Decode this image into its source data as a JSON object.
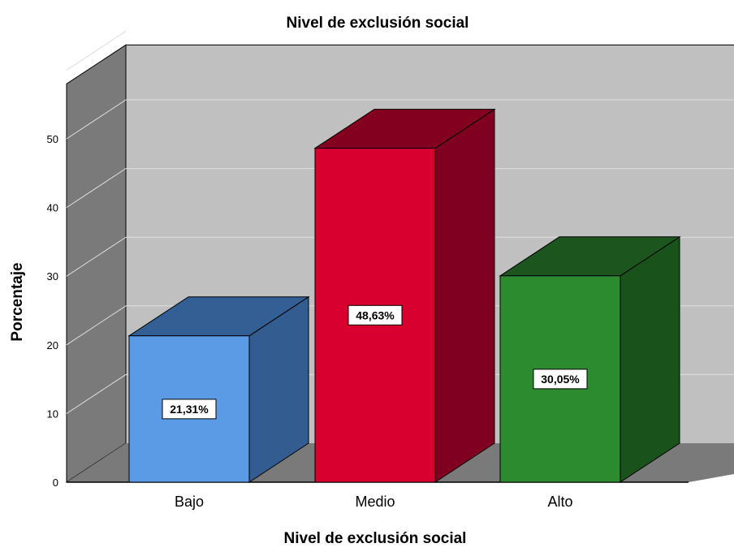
{
  "chart_data": {
    "type": "bar",
    "style": "3d",
    "title": "Nivel de exclusión social",
    "xlabel": "Nivel de exclusión social",
    "ylabel": "Porcentaje",
    "ylim": [
      0,
      50
    ],
    "yticks": [
      0,
      10,
      20,
      30,
      40,
      50
    ],
    "grid": true,
    "categories": [
      "Bajo",
      "Medio",
      "Alto"
    ],
    "values": [
      21.31,
      48.63,
      30.05
    ],
    "data_labels": [
      "21,31%",
      "48,63%",
      "30,05%"
    ],
    "colors": [
      {
        "front": "#5b9be6",
        "side": "#335d91",
        "top": "#345f95"
      },
      {
        "front": "#d7002f",
        "side": "#7f0020",
        "top": "#84001f"
      },
      {
        "front": "#2c8a2f",
        "side": "#1a521c",
        "top": "#1c561e"
      }
    ],
    "wall_color": "#c0c0c0",
    "side_wall_color": "#7a7a7a",
    "floor_color": "#7a7a7a"
  }
}
